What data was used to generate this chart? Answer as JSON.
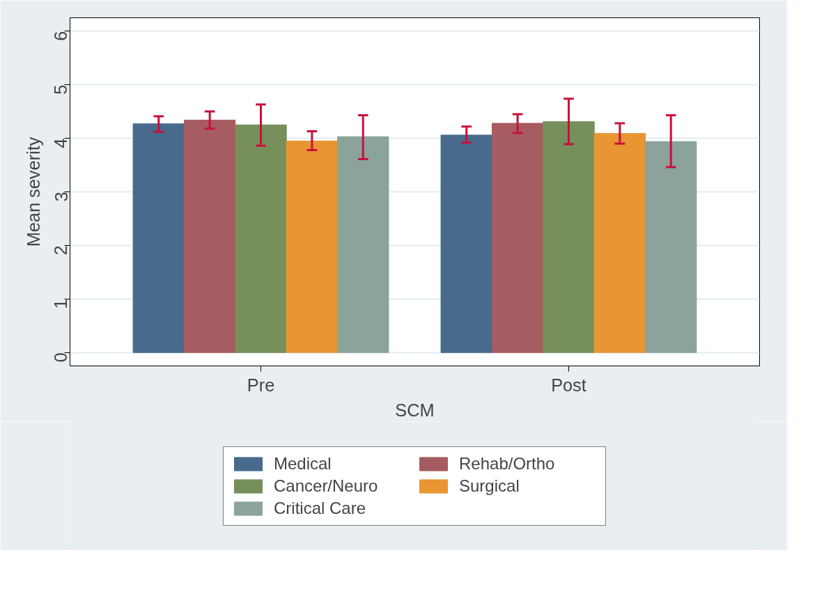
{
  "chart_data": {
    "type": "bar",
    "xlabel": "SCM",
    "ylabel": "Mean severity",
    "categories": [
      "Pre",
      "Post"
    ],
    "series": [
      {
        "name": "Medical",
        "color": "#486a8c",
        "values": [
          4.27,
          4.06
        ],
        "errors": [
          [
            4.12,
            4.41
          ],
          [
            3.92,
            4.22
          ]
        ]
      },
      {
        "name": "Rehab/Ortho",
        "color": "#a65c60",
        "values": [
          4.34,
          4.28
        ],
        "errors": [
          [
            4.18,
            4.5
          ],
          [
            4.1,
            4.45
          ]
        ]
      },
      {
        "name": "Cancer/Neuro",
        "color": "#768f5b",
        "values": [
          4.25,
          4.31
        ],
        "errors": [
          [
            3.86,
            4.63
          ],
          [
            3.89,
            4.74
          ]
        ]
      },
      {
        "name": "Surgical",
        "color": "#e89534",
        "values": [
          3.95,
          4.09
        ],
        "errors": [
          [
            3.78,
            4.13
          ],
          [
            3.9,
            4.28
          ]
        ]
      },
      {
        "name": "Critical Care",
        "color": "#8ba39b",
        "values": [
          4.03,
          3.94
        ],
        "errors": [
          [
            3.61,
            4.43
          ],
          [
            3.46,
            4.43
          ]
        ]
      }
    ],
    "ylim": [
      -0.25,
      6.25
    ],
    "yticks": [
      0,
      1,
      2,
      3,
      4,
      5,
      6
    ],
    "grid": "y",
    "legend": "bottom"
  }
}
